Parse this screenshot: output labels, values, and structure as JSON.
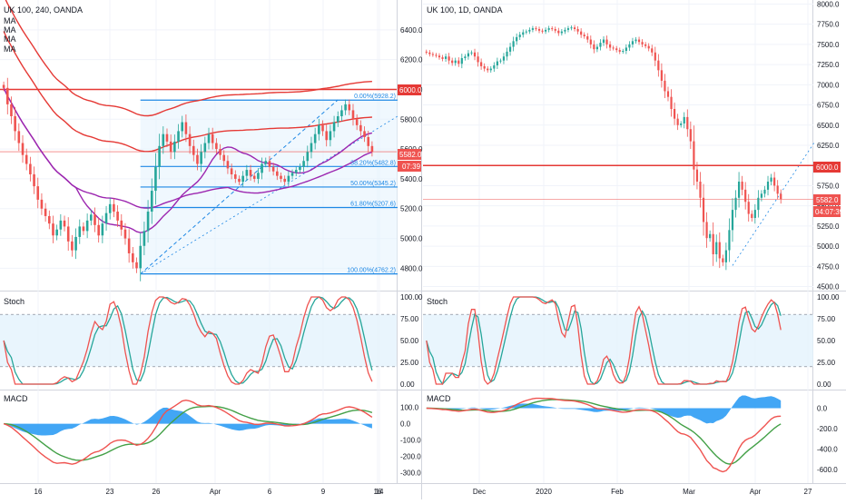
{
  "left_panel": {
    "header": "UK 100, 240, OANDA",
    "ma_labels": [
      "MA",
      "MA",
      "MA",
      "MA"
    ],
    "price_axis": [
      "6400.0",
      "6200.0",
      "6000.0",
      "5800.0",
      "5600.0",
      "5400.0",
      "5200.0",
      "5000.0",
      "4800.0"
    ],
    "fib_levels": [
      {
        "label": "0.00%(5928.2)",
        "value": 5928.2
      },
      {
        "label": "38.20%(5482.8)",
        "value": 5482.8
      },
      {
        "label": "50.00%(5345.2)",
        "value": 5345.2
      },
      {
        "label": "61.80%(5207.6)",
        "value": 5207.6
      },
      {
        "label": "100.00%(4762.2)",
        "value": 4762.2
      }
    ],
    "level_badge": "6000.0",
    "price_badge": "5582.0",
    "time_badge": "07:39",
    "stoch_title": "Stoch",
    "stoch_axis": [
      "100.00",
      "75.00",
      "50.00",
      "25.00",
      "0.00"
    ],
    "macd_title": "MACD",
    "macd_axis": [
      "100.0",
      "0.0",
      "-100.0",
      "-200.0",
      "-300.0"
    ],
    "time_axis": [
      "16",
      "23",
      "26",
      "Apr",
      "6",
      "9",
      "14",
      "16"
    ]
  },
  "right_panel": {
    "header": "UK 100, 1D, OANDA",
    "price_axis": [
      "8000.0",
      "7750.0",
      "7500.0",
      "7250.0",
      "7000.0",
      "6750.0",
      "6500.0",
      "6250.0",
      "6000.0",
      "5750.0",
      "5500.0",
      "5250.0",
      "5000.0",
      "4750.0",
      "4500.0"
    ],
    "level_badge": "6000.0",
    "price_badge": "5582.0",
    "time_badge": "04:07:39",
    "stoch_title": "Stoch",
    "stoch_axis": [
      "100.00",
      "75.00",
      "50.00",
      "25.00",
      "0.00"
    ],
    "macd_title": "MACD",
    "macd_axis": [
      "0.0",
      "-200.0",
      "-400.0",
      "-600.0"
    ],
    "time_axis": [
      "Dec",
      "2020",
      "Feb",
      "Mar",
      "Apr",
      "27"
    ]
  },
  "colors": {
    "up": "#26a69a",
    "down": "#ef5350",
    "level": "#e53935",
    "fib": "#1e88e5",
    "ma_purple": "#9c27b0",
    "ma_red": "#e53935"
  },
  "chart_data": [
    {
      "type": "candlestick",
      "title": "UK 100, 240, OANDA",
      "ylim": [
        4650,
        6600
      ],
      "current_price": 5582.0,
      "horizontal_level": 6000.0,
      "fib_retracement": {
        "high": 5928.2,
        "low": 4762.2,
        "levels": [
          0,
          0.382,
          0.5,
          0.618,
          1.0
        ]
      },
      "ma_count": 4,
      "close": [
        6010,
        5900,
        5820,
        5720,
        5640,
        5560,
        5500,
        5430,
        5350,
        5260,
        5200,
        5150,
        5100,
        5020,
        5060,
        5120,
        5080,
        4980,
        4920,
        5010,
        5080,
        5050,
        5120,
        5160,
        5090,
        5020,
        5100,
        5170,
        5230,
        5180,
        5120,
        5060,
        5000,
        4900,
        4840,
        4800,
        4950,
        5050,
        5180,
        5320,
        5480,
        5620,
        5700,
        5650,
        5580,
        5650,
        5720,
        5780,
        5700,
        5620,
        5560,
        5500,
        5580,
        5640,
        5700,
        5640,
        5600,
        5560,
        5520,
        5470,
        5430,
        5400,
        5380,
        5420,
        5460,
        5420,
        5400,
        5440,
        5500,
        5520,
        5480,
        5450,
        5420,
        5400,
        5380,
        5420,
        5440,
        5460,
        5480,
        5520,
        5580,
        5640,
        5700,
        5760,
        5720,
        5660,
        5720,
        5780,
        5820,
        5860,
        5900,
        5860,
        5800,
        5760,
        5720,
        5680,
        5620,
        5582
      ]
    },
    {
      "type": "candlestick",
      "title": "UK 100, 1D, OANDA",
      "ylim": [
        4450,
        8050
      ],
      "current_price": 5582.0,
      "horizontal_level": 6000.0,
      "close": [
        7400,
        7380,
        7370,
        7360,
        7340,
        7320,
        7350,
        7300,
        7270,
        7300,
        7260,
        7330,
        7350,
        7390,
        7400,
        7350,
        7280,
        7230,
        7200,
        7180,
        7200,
        7240,
        7290,
        7300,
        7350,
        7410,
        7470,
        7540,
        7590,
        7620,
        7650,
        7660,
        7680,
        7700,
        7690,
        7670,
        7660,
        7680,
        7700,
        7690,
        7670,
        7640,
        7660,
        7680,
        7700,
        7710,
        7690,
        7660,
        7620,
        7600,
        7560,
        7500,
        7440,
        7470,
        7520,
        7560,
        7500,
        7460,
        7450,
        7430,
        7410,
        7420,
        7460,
        7500,
        7540,
        7560,
        7530,
        7500,
        7480,
        7450,
        7400,
        7300,
        7180,
        7050,
        6920,
        6850,
        6700,
        6580,
        6500,
        6520,
        6600,
        6450,
        6300,
        5950,
        5800,
        5600,
        5300,
        5100,
        5150,
        4900,
        5050,
        4850,
        4800,
        4950,
        5200,
        5450,
        5600,
        5800,
        5700,
        5550,
        5400,
        5350,
        5450,
        5600,
        5650,
        5700,
        5800,
        5850,
        5750,
        5650,
        5582
      ]
    },
    {
      "type": "line",
      "name": "Stoch 240",
      "ylim": [
        0,
        100
      ]
    },
    {
      "type": "line",
      "name": "MACD 240"
    },
    {
      "type": "line",
      "name": "Stoch 1D",
      "ylim": [
        0,
        100
      ]
    },
    {
      "type": "line",
      "name": "MACD 1D"
    }
  ]
}
